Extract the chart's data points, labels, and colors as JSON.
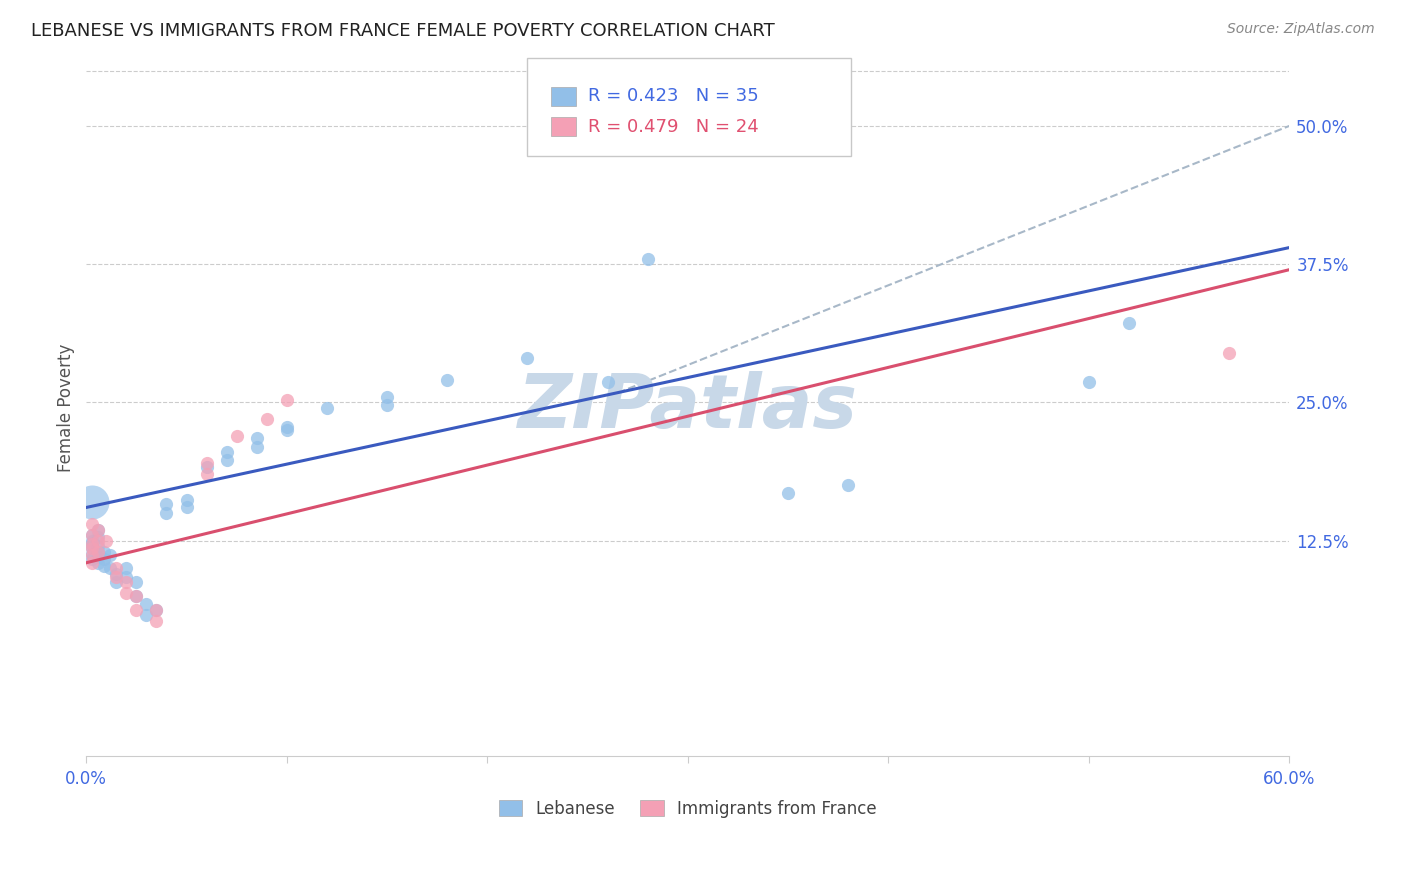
{
  "title": "LEBANESE VS IMMIGRANTS FROM FRANCE FEMALE POVERTY CORRELATION CHART",
  "source": "Source: ZipAtlas.com",
  "ylabel": "Female Poverty",
  "ytick_labels": [
    "12.5%",
    "25.0%",
    "37.5%",
    "50.0%"
  ],
  "ytick_values": [
    0.125,
    0.25,
    0.375,
    0.5
  ],
  "xlim": [
    0.0,
    0.6
  ],
  "ylim": [
    -0.07,
    0.56
  ],
  "legend_label1": "Lebanese",
  "legend_label2": "Immigrants from France",
  "blue_color": "#92bfe8",
  "pink_color": "#f4a0b5",
  "blue_line_color": "#3a5abf",
  "pink_line_color": "#d94f6e",
  "dashed_line_color": "#a8b8c8",
  "watermark_color": "#c8d8e8",
  "background_color": "#ffffff",
  "blue_scatter": [
    [
      0.003,
      0.13
    ],
    [
      0.003,
      0.125
    ],
    [
      0.003,
      0.122
    ],
    [
      0.003,
      0.118
    ],
    [
      0.003,
      0.113
    ],
    [
      0.003,
      0.108
    ],
    [
      0.006,
      0.135
    ],
    [
      0.006,
      0.128
    ],
    [
      0.006,
      0.12
    ],
    [
      0.006,
      0.115
    ],
    [
      0.006,
      0.11
    ],
    [
      0.006,
      0.105
    ],
    [
      0.009,
      0.115
    ],
    [
      0.009,
      0.108
    ],
    [
      0.009,
      0.102
    ],
    [
      0.012,
      0.112
    ],
    [
      0.012,
      0.1
    ],
    [
      0.015,
      0.095
    ],
    [
      0.015,
      0.088
    ],
    [
      0.02,
      0.1
    ],
    [
      0.02,
      0.092
    ],
    [
      0.025,
      0.088
    ],
    [
      0.025,
      0.075
    ],
    [
      0.03,
      0.068
    ],
    [
      0.03,
      0.058
    ],
    [
      0.035,
      0.062
    ],
    [
      0.04,
      0.158
    ],
    [
      0.04,
      0.15
    ],
    [
      0.05,
      0.162
    ],
    [
      0.05,
      0.155
    ],
    [
      0.06,
      0.192
    ],
    [
      0.07,
      0.205
    ],
    [
      0.07,
      0.198
    ],
    [
      0.085,
      0.218
    ],
    [
      0.085,
      0.21
    ],
    [
      0.1,
      0.228
    ],
    [
      0.1,
      0.225
    ],
    [
      0.12,
      0.245
    ],
    [
      0.15,
      0.255
    ],
    [
      0.15,
      0.248
    ],
    [
      0.18,
      0.27
    ],
    [
      0.22,
      0.29
    ],
    [
      0.26,
      0.268
    ],
    [
      0.28,
      0.38
    ],
    [
      0.35,
      0.168
    ],
    [
      0.38,
      0.175
    ],
    [
      0.5,
      0.268
    ],
    [
      0.52,
      0.322
    ]
  ],
  "pink_scatter": [
    [
      0.003,
      0.14
    ],
    [
      0.003,
      0.13
    ],
    [
      0.003,
      0.122
    ],
    [
      0.003,
      0.118
    ],
    [
      0.003,
      0.112
    ],
    [
      0.003,
      0.105
    ],
    [
      0.006,
      0.135
    ],
    [
      0.006,
      0.125
    ],
    [
      0.006,
      0.115
    ],
    [
      0.01,
      0.125
    ],
    [
      0.015,
      0.1
    ],
    [
      0.015,
      0.092
    ],
    [
      0.02,
      0.088
    ],
    [
      0.02,
      0.078
    ],
    [
      0.025,
      0.075
    ],
    [
      0.025,
      0.062
    ],
    [
      0.035,
      0.062
    ],
    [
      0.035,
      0.052
    ],
    [
      0.06,
      0.195
    ],
    [
      0.06,
      0.185
    ],
    [
      0.075,
      0.22
    ],
    [
      0.09,
      0.235
    ],
    [
      0.1,
      0.252
    ],
    [
      0.57,
      0.295
    ]
  ],
  "big_blue_dot": [
    0.003,
    0.16
  ],
  "big_blue_dot_size": 600,
  "blue_trendline_x": [
    0.0,
    0.6
  ],
  "blue_trendline_y": [
    0.155,
    0.39
  ],
  "pink_trendline_x": [
    0.0,
    0.6
  ],
  "pink_trendline_y": [
    0.105,
    0.37
  ],
  "dashed_trendline_x": [
    0.26,
    0.6
  ],
  "dashed_trendline_y": [
    0.255,
    0.5
  ],
  "title_fontsize": 13,
  "source_fontsize": 10,
  "tick_fontsize": 12
}
